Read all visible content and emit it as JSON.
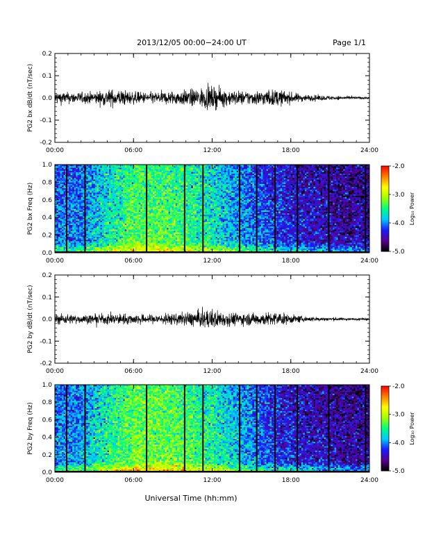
{
  "header": {
    "title": "2013/12/05  00:00−24:00 UT",
    "page": "Page 1/1"
  },
  "footer": {
    "xlabel": "Universal Time (hh:mm)"
  },
  "colorbar": {
    "label": "Log₁₀ Power",
    "ticks": [
      "-2.0",
      "-3.0",
      "-4.0",
      "-5.0"
    ],
    "range": [
      -5.0,
      -2.0
    ],
    "colormap": [
      "#000000",
      "#5a0090",
      "#1a1aff",
      "#00c8ff",
      "#00ff80",
      "#a0ff00",
      "#ffff00",
      "#ff8000",
      "#ff0000"
    ]
  },
  "chart_data": [
    {
      "type": "line",
      "ylabel": "PG2 bx dB/dt (nT/sec)",
      "xlim": [
        "00:00",
        "24:00"
      ],
      "ylim": [
        -0.2,
        0.2
      ],
      "x_ticks": [
        "00:00",
        "06:00",
        "12:00",
        "18:00",
        "24:00"
      ],
      "y_ticks": [
        "0.2",
        "0.1",
        "0.0",
        "-0.1",
        "-0.2"
      ],
      "series": [
        {
          "hours": [
            0,
            1,
            2,
            3,
            4,
            5,
            6,
            7,
            8,
            9,
            10,
            11,
            12,
            13,
            14,
            15,
            16,
            17,
            18,
            19,
            20,
            21,
            22,
            23,
            24
          ],
          "amplitude": [
            0.025,
            0.02,
            0.02,
            0.022,
            0.03,
            0.03,
            0.022,
            0.02,
            0.022,
            0.025,
            0.028,
            0.035,
            0.04,
            0.03,
            0.025,
            0.025,
            0.028,
            0.03,
            0.02,
            0.012,
            0.01,
            0.008,
            0.006,
            0.005,
            0.004
          ]
        }
      ]
    },
    {
      "type": "heatmap",
      "ylabel": "PG2 bx Freq (Hz)",
      "xlim": [
        "00:00",
        "24:00"
      ],
      "ylim": [
        0.0,
        1.0
      ],
      "x_ticks": [
        "00:00",
        "06:00",
        "12:00",
        "18:00",
        "24:00"
      ],
      "y_ticks": [
        "1.0",
        "0.8",
        "0.6",
        "0.4",
        "0.2",
        "0.0"
      ],
      "gap_hours": [
        0.9,
        2.3,
        7.0,
        9.9,
        11.3,
        14.1,
        15.4,
        16.8,
        18.5,
        20.9,
        23.7
      ],
      "power_profile_hours": [
        0,
        2,
        4,
        6,
        8,
        10,
        12,
        14,
        16,
        18,
        20,
        22,
        24
      ],
      "power_profile_log10": [
        -4.0,
        -4.0,
        -3.6,
        -3.3,
        -3.3,
        -3.4,
        -3.6,
        -3.9,
        -4.1,
        -4.3,
        -4.4,
        -4.5,
        -4.5
      ]
    },
    {
      "type": "line",
      "ylabel": "PG2 by dB/dt (nT/sec)",
      "xlim": [
        "00:00",
        "24:00"
      ],
      "ylim": [
        -0.2,
        0.2
      ],
      "x_ticks": [
        "00:00",
        "06:00",
        "12:00",
        "18:00",
        "24:00"
      ],
      "y_ticks": [
        "0.2",
        "0.1",
        "0.0",
        "-0.1",
        "-0.2"
      ],
      "series": [
        {
          "hours": [
            0,
            1,
            2,
            3,
            4,
            5,
            6,
            7,
            8,
            9,
            10,
            11,
            12,
            13,
            14,
            15,
            16,
            17,
            18,
            19,
            20,
            21,
            22,
            23,
            24
          ],
          "amplitude": [
            0.02,
            0.018,
            0.015,
            0.016,
            0.02,
            0.02,
            0.018,
            0.016,
            0.018,
            0.02,
            0.024,
            0.03,
            0.035,
            0.026,
            0.022,
            0.022,
            0.024,
            0.025,
            0.016,
            0.01,
            0.008,
            0.007,
            0.005,
            0.004,
            0.004
          ]
        }
      ]
    },
    {
      "type": "heatmap",
      "ylabel": "PG2 by Freq (Hz)",
      "xlim": [
        "00:00",
        "24:00"
      ],
      "ylim": [
        0.0,
        1.0
      ],
      "x_ticks": [
        "00:00",
        "06:00",
        "12:00",
        "18:00",
        "24:00"
      ],
      "y_ticks": [
        "1.0",
        "0.8",
        "0.6",
        "0.4",
        "0.2",
        "0.0"
      ],
      "gap_hours": [
        0.9,
        2.3,
        7.0,
        9.9,
        11.3,
        14.1,
        15.4,
        16.8,
        18.5,
        20.9,
        23.7
      ],
      "power_profile_hours": [
        0,
        2,
        4,
        6,
        8,
        10,
        12,
        14,
        16,
        18,
        20,
        22,
        24
      ],
      "power_profile_log10": [
        -4.0,
        -3.9,
        -3.5,
        -3.2,
        -3.2,
        -3.3,
        -3.5,
        -3.8,
        -4.1,
        -4.3,
        -4.4,
        -4.5,
        -4.5
      ]
    }
  ]
}
